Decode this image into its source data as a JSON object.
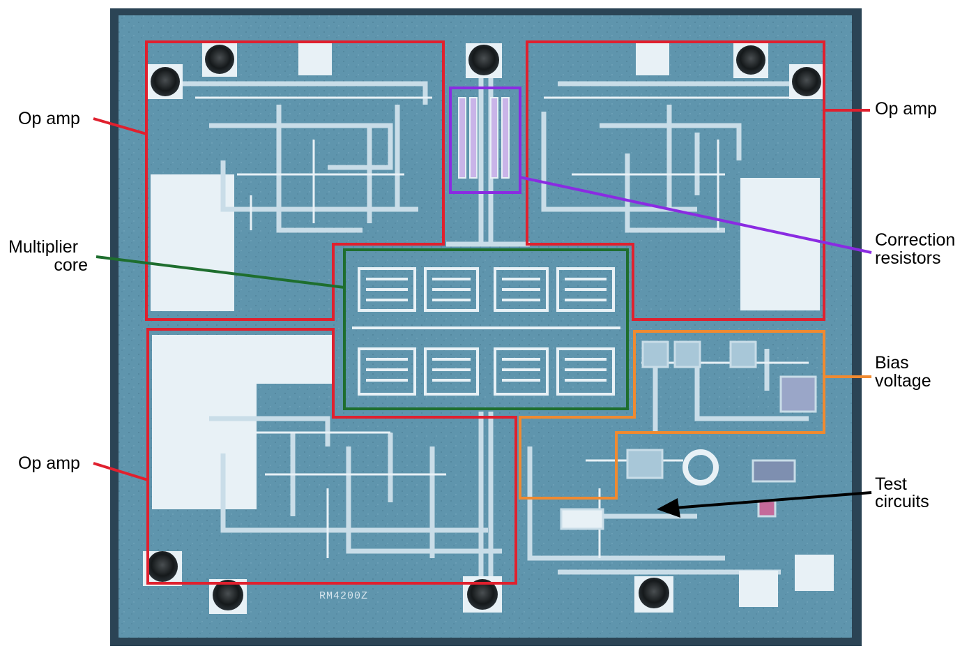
{
  "labels": {
    "op_amp_top_left": "Op amp",
    "op_amp_top_right": "Op amp",
    "op_amp_bottom_left": "Op amp",
    "multiplier_line1": "Multiplier",
    "multiplier_line2": "core",
    "correction_line1": "Correction",
    "correction_line2": "resistors",
    "bias_line1": "Bias",
    "bias_line2": "voltage",
    "test_line1": "Test",
    "test_line2": "circuits"
  },
  "die_marking": "RM4200Z",
  "colors": {
    "op_amp": "#e0202e",
    "multiplier_core": "#1e6e2e",
    "correction_resistors": "#8a2be2",
    "bias_voltage": "#f08a30",
    "test_circuits": "#000000",
    "die_background": "#5f95ad",
    "die_border": "#2b4455",
    "metal": "#c9dde8",
    "metal_bright": "#e8f1f6",
    "pad_dark": "#20262a"
  }
}
